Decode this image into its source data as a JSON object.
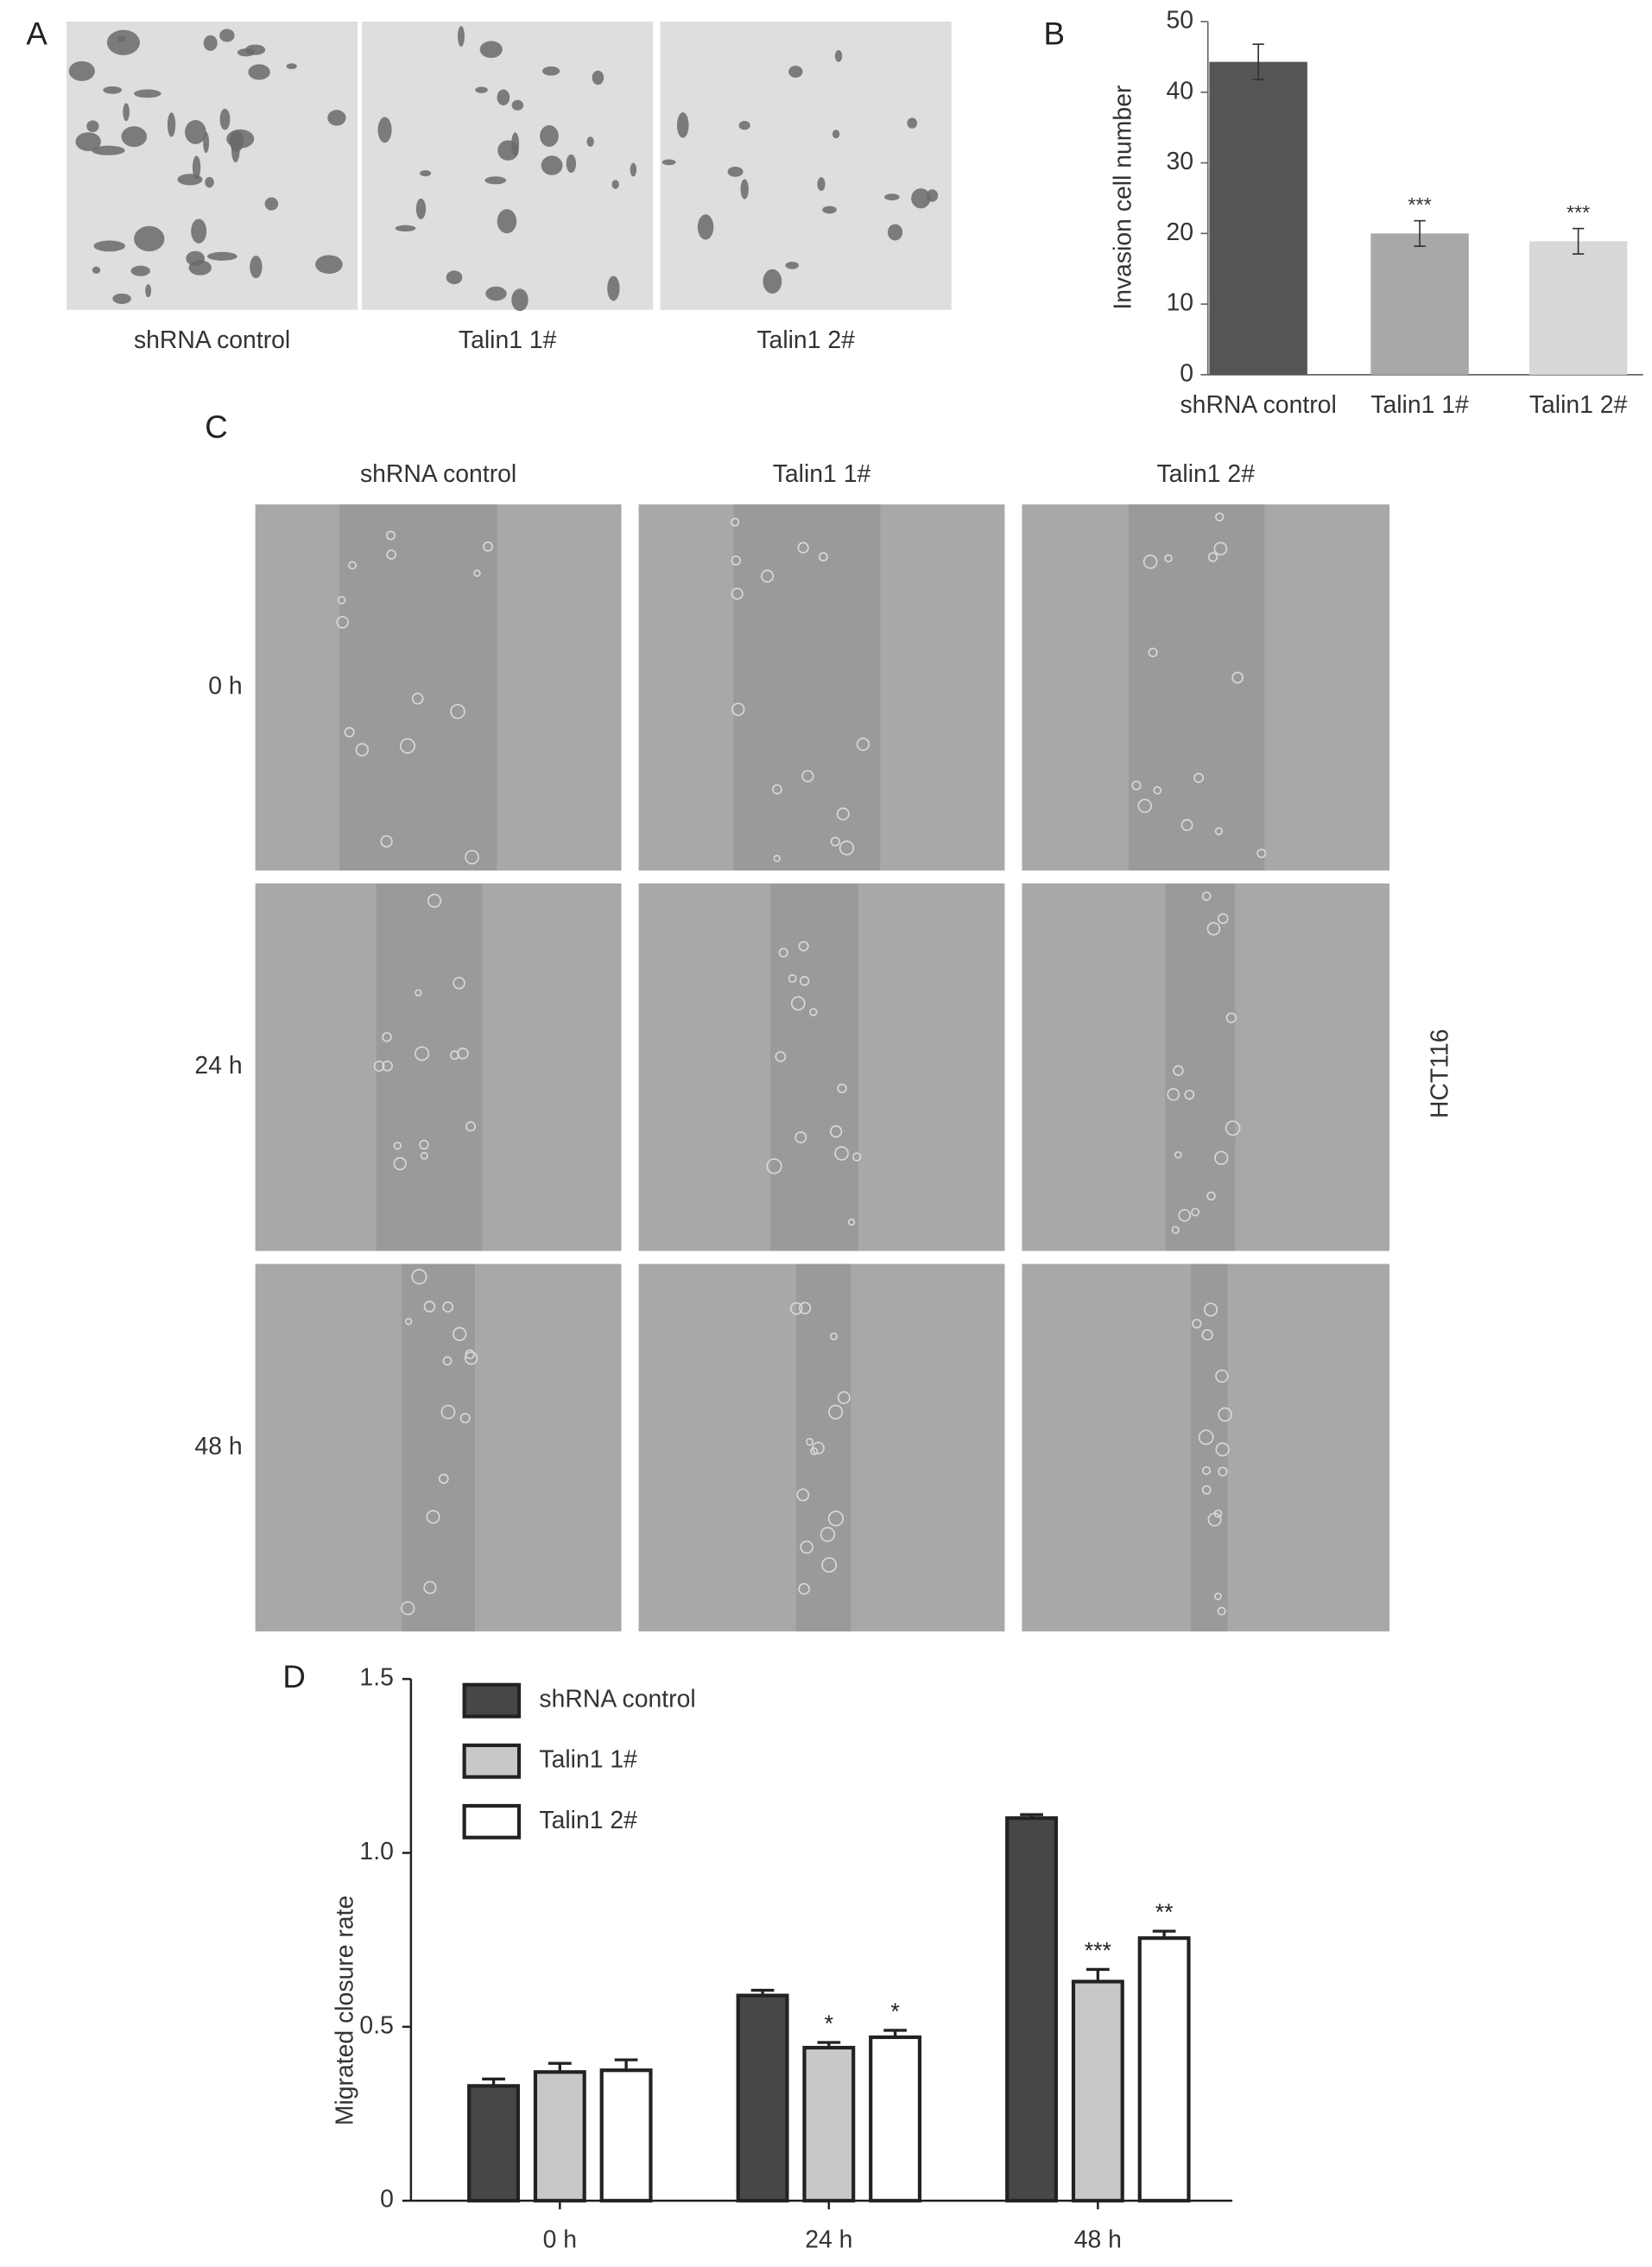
{
  "panel_labels": [
    "A",
    "B",
    "C",
    "D"
  ],
  "panel_a": {
    "labels": [
      "shRNA control",
      "Talin1 1#",
      "Talin1 2#"
    ]
  },
  "panel_c": {
    "columns": [
      "shRNA control",
      "Talin1 1#",
      "Talin1 2#"
    ],
    "rows": [
      "0 h",
      "24 h",
      "48 h"
    ],
    "side_label": "HCT116"
  },
  "chart_data": [
    {
      "type": "bar",
      "ylabel": "Invasion cell number",
      "categories": [
        "shRNA control",
        "Talin1 1#",
        "Talin1 2#"
      ],
      "values": [
        44.3,
        20,
        18.9
      ],
      "errors": [
        2.5,
        1.8,
        1.8
      ],
      "significance": [
        null,
        "***",
        "***"
      ],
      "colors": [
        "#555555",
        "#a8a8a8",
        "#d8d8d8"
      ],
      "ylim": [
        0,
        50
      ],
      "yticks": [
        0,
        10,
        20,
        30,
        40,
        50
      ]
    },
    {
      "type": "grouped_bar",
      "ylabel": "Migrated closure rate",
      "categories": [
        "0 h",
        "24 h",
        "48 h"
      ],
      "series": [
        {
          "name": "shRNA control",
          "color": "#474747",
          "values": [
            0.33,
            0.59,
            1.1
          ],
          "errors": [
            0.02,
            0.015,
            0.01
          ],
          "significance": [
            null,
            null,
            null
          ]
        },
        {
          "name": "Talin1 1#",
          "color": "#c8c8c8",
          "values": [
            0.37,
            0.44,
            0.63
          ],
          "errors": [
            0.025,
            0.015,
            0.035
          ],
          "significance": [
            null,
            "*",
            "***"
          ]
        },
        {
          "name": "Talin1 2#",
          "color": "#ffffff",
          "values": [
            0.375,
            0.47,
            0.755
          ],
          "errors": [
            0.03,
            0.02,
            0.02
          ],
          "significance": [
            null,
            "*",
            "**"
          ]
        }
      ],
      "ylim": [
        0,
        1.5
      ],
      "yticks": [
        0,
        0.5,
        {
          "value": 1,
          "label": "1.0"
        },
        1.5
      ],
      "legend": "top-left"
    }
  ]
}
